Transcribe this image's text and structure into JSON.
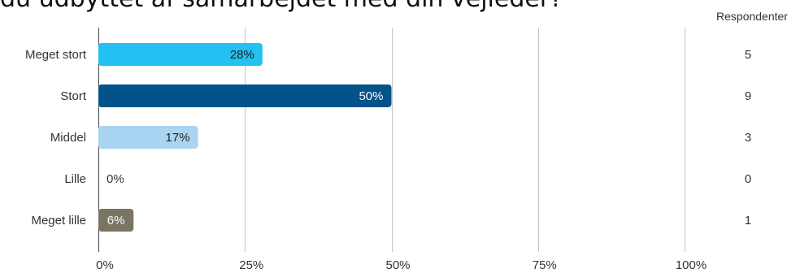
{
  "header": {
    "title": "du udbyttet af samarbejdet med din vejleder?",
    "respondents_label": "Respondenter"
  },
  "chart_data": {
    "type": "bar",
    "orientation": "horizontal",
    "categories": [
      "Meget stort",
      "Stort",
      "Middel",
      "Lille",
      "Meget lille"
    ],
    "values": [
      28,
      50,
      17,
      0,
      6
    ],
    "value_labels": [
      "28%",
      "50%",
      "17%",
      "0%",
      "6%"
    ],
    "respondents": [
      5,
      9,
      3,
      0,
      1
    ],
    "colors": [
      "#23c1f1",
      "#01538a",
      "#a9d4f2",
      "#cccccc",
      "#7a7563"
    ],
    "label_colors": [
      "#222222",
      "#ffffff",
      "#222222",
      "#333333",
      "#ffffff"
    ],
    "xlim": [
      0,
      100
    ],
    "xticks": [
      0,
      25,
      50,
      75,
      100
    ],
    "xtick_labels": [
      "0%",
      "25%",
      "50%",
      "75%",
      "100%"
    ],
    "grid": true
  }
}
